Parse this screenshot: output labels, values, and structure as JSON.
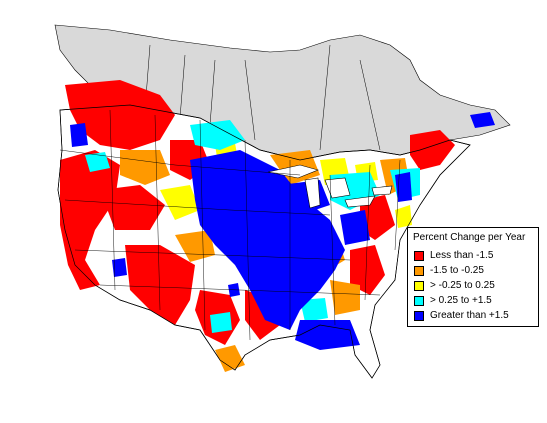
{
  "legend": {
    "title": "Percent Change per Year",
    "items": [
      {
        "label": "Less than -1.5",
        "color": "#ff0000"
      },
      {
        "label": "-1.5 to -0.25",
        "color": "#ff9900"
      },
      {
        "label": "> -0.25 to 0.25",
        "color": "#ffff00"
      },
      {
        "label": "> 0.25 to +1.5",
        "color": "#00ffff"
      },
      {
        "label": "Greater than +1.5",
        "color": "#0000ff"
      }
    ]
  },
  "map_colors": {
    "canada": "#d9d9d9",
    "water": "#ffffff",
    "no_data": "#ffffff",
    "borders": "#000000"
  }
}
